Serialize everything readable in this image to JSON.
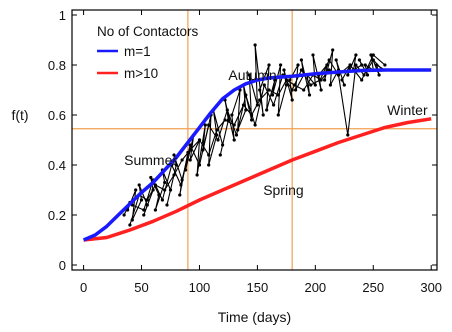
{
  "chart_data": {
    "type": "line",
    "xlabel": "Time (days)",
    "ylabel": "f(t)",
    "xlim": [
      -10,
      305
    ],
    "ylim": [
      -0.02,
      1.02
    ],
    "xticks": [
      0,
      50,
      100,
      150,
      200,
      250,
      300
    ],
    "yticks": [
      0,
      0.2,
      0.4,
      0.6,
      0.8,
      1
    ],
    "ytick_labels": [
      "0",
      "0.2",
      "0.4",
      "0.6",
      "0.8",
      "1"
    ],
    "legend": {
      "title": "No of Contactors",
      "placement": "top-left",
      "entries": [
        {
          "label": "m=1",
          "color": "#1a1aff"
        },
        {
          "label": "m>10",
          "color": "#ff2020"
        }
      ]
    },
    "reference_lines": [
      {
        "orientation": "vertical",
        "x": 90,
        "color": "#f0a050"
      },
      {
        "orientation": "vertical",
        "x": 180,
        "color": "#f0a050"
      },
      {
        "orientation": "horizontal",
        "y": 0.545,
        "color": "#f0a050"
      }
    ],
    "annotations": [
      {
        "text": "Summer",
        "x": 35,
        "y": 0.4
      },
      {
        "text": "Autumn",
        "x": 125,
        "y": 0.74
      },
      {
        "text": "Spring",
        "x": 155,
        "y": 0.28
      },
      {
        "text": "Winter",
        "x": 262,
        "y": 0.6
      }
    ],
    "series": [
      {
        "name": "m=1",
        "color": "#1a1aff",
        "x": [
          0,
          10,
          20,
          30,
          40,
          50,
          60,
          70,
          80,
          90,
          100,
          110,
          120,
          130,
          140,
          150,
          160,
          170,
          180,
          190,
          200,
          220,
          240,
          260,
          280,
          300
        ],
        "y": [
          0.1,
          0.12,
          0.155,
          0.2,
          0.245,
          0.29,
          0.33,
          0.38,
          0.43,
          0.49,
          0.55,
          0.61,
          0.665,
          0.7,
          0.725,
          0.74,
          0.748,
          0.752,
          0.755,
          0.76,
          0.765,
          0.772,
          0.778,
          0.78,
          0.78,
          0.78
        ]
      },
      {
        "name": "m>10",
        "color": "#ff2020",
        "x": [
          0,
          20,
          40,
          60,
          80,
          100,
          120,
          140,
          160,
          180,
          200,
          220,
          240,
          260,
          280,
          300
        ],
        "y": [
          0.1,
          0.11,
          0.14,
          0.175,
          0.215,
          0.26,
          0.3,
          0.34,
          0.38,
          0.42,
          0.455,
          0.49,
          0.52,
          0.55,
          0.57,
          0.585
        ]
      },
      {
        "color": "#000000",
        "x": [
          35,
          40,
          38,
          45,
          42,
          50,
          48,
          55,
          52,
          60,
          58,
          65,
          62,
          70,
          68,
          75,
          72,
          80,
          78,
          85,
          83,
          90,
          88,
          95,
          92,
          100,
          98,
          105,
          103,
          110,
          108,
          115,
          112,
          120,
          118,
          125,
          122,
          130,
          128,
          135,
          133,
          140,
          138,
          145,
          143,
          150,
          148,
          155,
          152,
          160,
          158,
          165,
          163,
          170,
          168,
          175,
          173,
          180,
          178,
          185,
          183,
          190,
          188,
          195,
          193,
          200,
          198,
          205,
          203,
          210,
          208,
          215,
          213,
          220,
          218,
          225,
          223,
          230,
          228,
          235,
          233,
          240,
          238,
          245,
          243,
          250,
          248,
          255,
          253,
          260
        ],
        "y": [
          0.2,
          0.25,
          0.22,
          0.3,
          0.18,
          0.26,
          0.32,
          0.24,
          0.2,
          0.3,
          0.35,
          0.28,
          0.22,
          0.33,
          0.38,
          0.3,
          0.24,
          0.4,
          0.44,
          0.34,
          0.28,
          0.45,
          0.38,
          0.52,
          0.42,
          0.5,
          0.36,
          0.56,
          0.46,
          0.6,
          0.4,
          0.52,
          0.62,
          0.48,
          0.44,
          0.58,
          0.66,
          0.5,
          0.6,
          0.7,
          0.54,
          0.62,
          0.72,
          0.58,
          0.76,
          0.64,
          0.88,
          0.6,
          0.7,
          0.8,
          0.62,
          0.74,
          0.68,
          0.8,
          0.6,
          0.72,
          0.78,
          0.66,
          0.74,
          0.8,
          0.7,
          0.76,
          0.82,
          0.68,
          0.76,
          0.72,
          0.84,
          0.7,
          0.76,
          0.8,
          0.74,
          0.86,
          0.72,
          0.78,
          0.82,
          0.72,
          0.74,
          0.8,
          0.76,
          0.84,
          0.78,
          0.8,
          0.82,
          0.76,
          0.8,
          0.78,
          0.84,
          0.76,
          0.8,
          0.78
        ]
      },
      {
        "color": "#000000",
        "x": [
          40,
          48,
          55,
          62,
          70,
          78,
          85,
          92,
          100,
          108,
          115,
          122,
          130,
          138,
          145,
          152,
          160,
          168,
          175,
          182,
          190,
          198,
          205,
          212,
          220,
          228,
          235,
          242,
          250,
          258
        ],
        "y": [
          0.16,
          0.28,
          0.26,
          0.32,
          0.3,
          0.36,
          0.42,
          0.46,
          0.5,
          0.44,
          0.54,
          0.58,
          0.56,
          0.64,
          0.6,
          0.66,
          0.7,
          0.68,
          0.74,
          0.72,
          0.7,
          0.76,
          0.74,
          0.78,
          0.76,
          0.52,
          0.8,
          0.76,
          0.82,
          0.78
        ]
      },
      {
        "color": "#000000",
        "x": [
          42,
          52,
          60,
          68,
          76,
          84,
          92,
          100,
          108,
          116,
          124,
          132,
          140,
          148,
          156,
          164,
          172,
          180,
          188,
          196,
          204,
          212,
          220,
          230,
          240,
          250,
          260
        ],
        "y": [
          0.24,
          0.22,
          0.34,
          0.26,
          0.4,
          0.32,
          0.48,
          0.4,
          0.56,
          0.5,
          0.62,
          0.52,
          0.68,
          0.56,
          0.72,
          0.64,
          0.76,
          0.7,
          0.78,
          0.72,
          0.74,
          0.82,
          0.76,
          0.8,
          0.74,
          0.84,
          0.8
        ]
      }
    ]
  }
}
